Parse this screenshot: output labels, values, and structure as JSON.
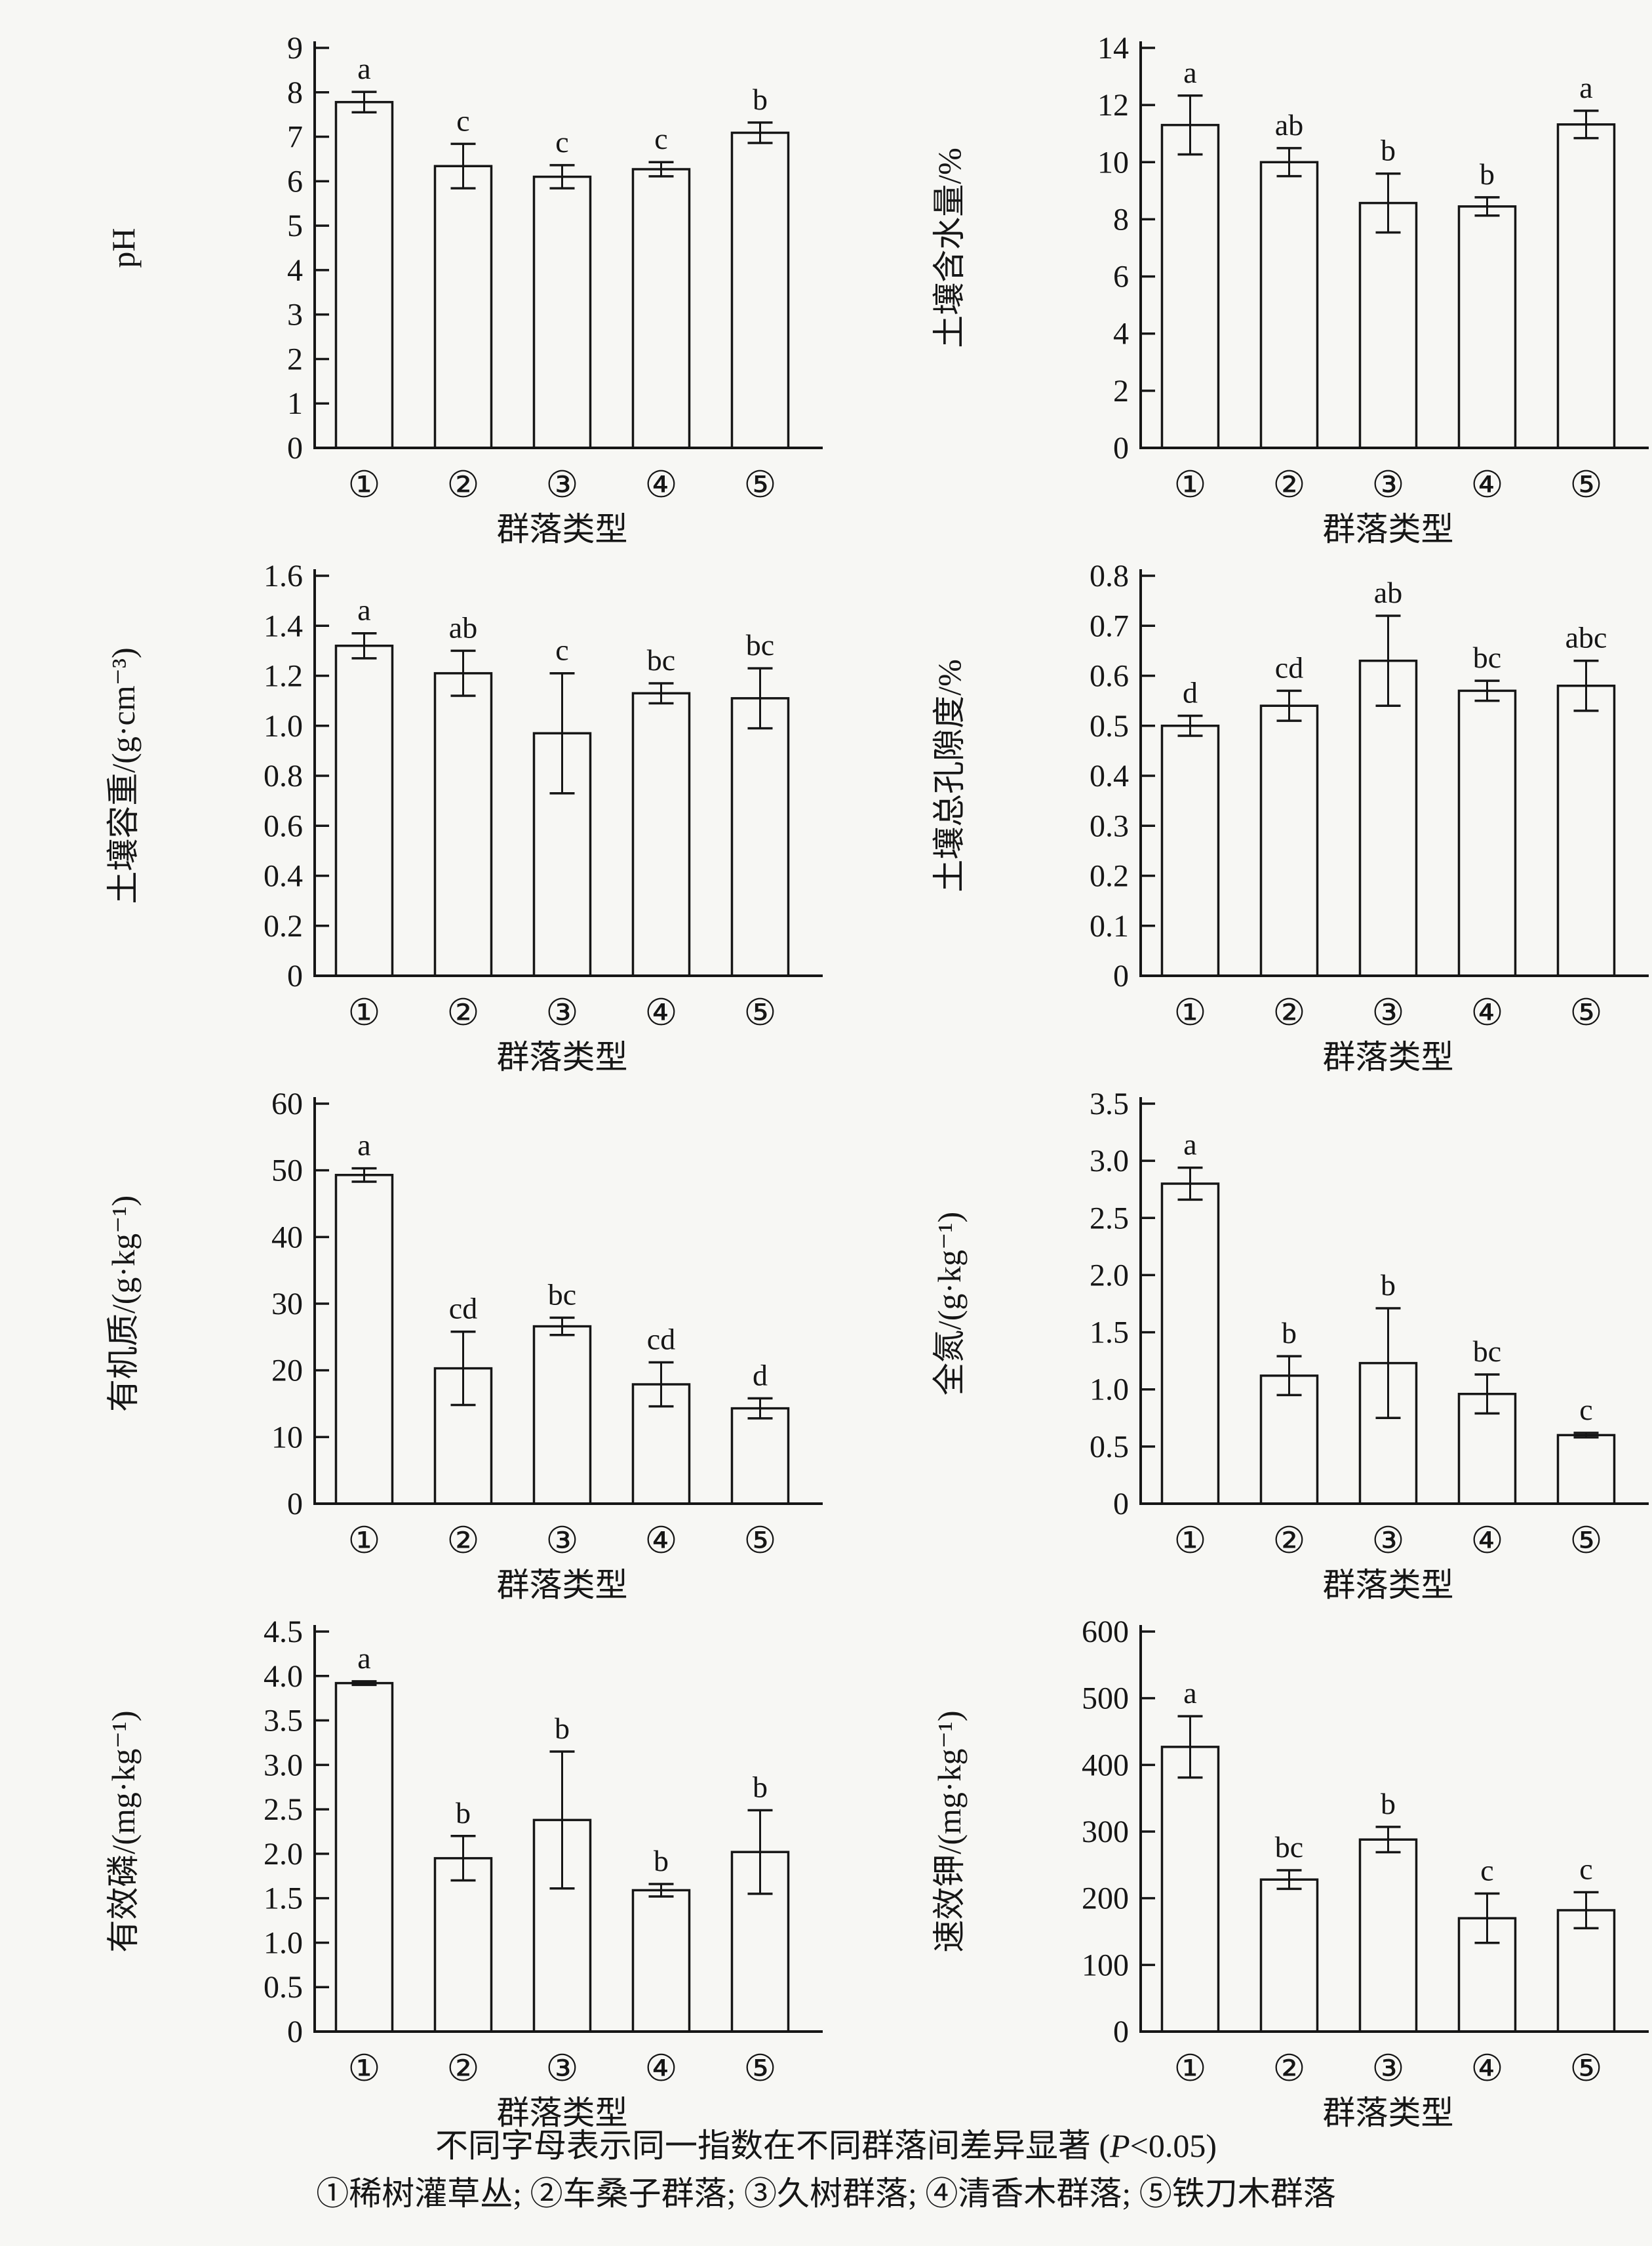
{
  "page": {
    "footnote": {
      "line1_pre": "不同字母表示同一指数在不同群落间差异显著 (",
      "line1_italic": "P",
      "line1_post": "<0.05)",
      "line2": "①稀树灌草丛; ②车桑子群落; ③久树群落; ④清香木群落; ⑤铁刀木群落"
    }
  },
  "chart_data": [
    {
      "type": "bar",
      "title": "",
      "ylabel": "pH",
      "xlabel": "群落类型",
      "categories": [
        "①",
        "②",
        "③",
        "④",
        "⑤"
      ],
      "values": [
        7.78,
        6.34,
        6.1,
        6.27,
        7.09
      ],
      "errors": [
        0.23,
        0.5,
        0.26,
        0.16,
        0.23
      ],
      "sig_letters": [
        "a",
        "c",
        "c",
        "c",
        "b"
      ],
      "ylim": [
        0,
        9
      ],
      "ytick_step": 1,
      "ytick_decimals": 0,
      "grid": false,
      "legend": "none"
    },
    {
      "type": "bar",
      "title": "",
      "ylabel": "土壤含水量/%",
      "xlabel": "群落类型",
      "categories": [
        "①",
        "②",
        "③",
        "④",
        "⑤"
      ],
      "values": [
        11.3,
        10.0,
        8.57,
        8.45,
        11.32
      ],
      "errors": [
        1.03,
        0.49,
        1.03,
        0.32,
        0.48
      ],
      "sig_letters": [
        "a",
        "ab",
        "b",
        "b",
        "a"
      ],
      "ylim": [
        0,
        14
      ],
      "ytick_step": 2,
      "ytick_decimals": 0,
      "grid": false,
      "legend": "none"
    },
    {
      "type": "bar",
      "title": "",
      "ylabel": "土壤容重/(g·cm⁻³)",
      "xlabel": "群落类型",
      "categories": [
        "①",
        "②",
        "③",
        "④",
        "⑤"
      ],
      "values": [
        1.32,
        1.21,
        0.97,
        1.13,
        1.11
      ],
      "errors": [
        0.05,
        0.09,
        0.24,
        0.04,
        0.12
      ],
      "sig_letters": [
        "a",
        "ab",
        "c",
        "bc",
        "bc"
      ],
      "ylim": [
        0,
        1.6
      ],
      "ytick_step": 0.2,
      "ytick_decimals": 1,
      "grid": false,
      "legend": "none"
    },
    {
      "type": "bar",
      "title": "",
      "ylabel": "土壤总孔隙度/%",
      "xlabel": "群落类型",
      "categories": [
        "①",
        "②",
        "③",
        "④",
        "⑤"
      ],
      "values": [
        0.5,
        0.54,
        0.63,
        0.57,
        0.58
      ],
      "errors": [
        0.02,
        0.03,
        0.09,
        0.02,
        0.05
      ],
      "sig_letters": [
        "d",
        "cd",
        "ab",
        "bc",
        "abc"
      ],
      "ylim": [
        0,
        0.8
      ],
      "ytick_step": 0.1,
      "ytick_decimals": 1,
      "grid": false,
      "legend": "none"
    },
    {
      "type": "bar",
      "title": "",
      "ylabel": "有机质/(g·kg⁻¹)",
      "xlabel": "群落类型",
      "categories": [
        "①",
        "②",
        "③",
        "④",
        "⑤"
      ],
      "values": [
        49.3,
        20.3,
        26.6,
        17.9,
        14.3
      ],
      "errors": [
        1.0,
        5.5,
        1.3,
        3.3,
        1.5
      ],
      "sig_letters": [
        "a",
        "cd",
        "bc",
        "cd",
        "d"
      ],
      "ylim": [
        0,
        60
      ],
      "ytick_step": 10,
      "ytick_decimals": 0,
      "grid": false,
      "legend": "none"
    },
    {
      "type": "bar",
      "title": "",
      "ylabel": "全氮/(g·kg⁻¹)",
      "xlabel": "群落类型",
      "categories": [
        "①",
        "②",
        "③",
        "④",
        "⑤"
      ],
      "values": [
        2.8,
        1.12,
        1.23,
        0.96,
        0.6
      ],
      "errors": [
        0.14,
        0.17,
        0.48,
        0.17,
        0.02
      ],
      "sig_letters": [
        "a",
        "b",
        "b",
        "bc",
        "c"
      ],
      "ylim": [
        0,
        3.5
      ],
      "ytick_step": 0.5,
      "ytick_decimals": 1,
      "grid": false,
      "legend": "none"
    },
    {
      "type": "bar",
      "title": "",
      "ylabel": "有效磷/(mg·kg⁻¹)",
      "xlabel": "群落类型",
      "categories": [
        "①",
        "②",
        "③",
        "④",
        "⑤"
      ],
      "values": [
        3.92,
        1.95,
        2.38,
        1.59,
        2.02
      ],
      "errors": [
        0.02,
        0.25,
        0.77,
        0.07,
        0.47
      ],
      "sig_letters": [
        "a",
        "b",
        "b",
        "b",
        "b"
      ],
      "ylim": [
        0,
        4.5
      ],
      "ytick_step": 0.5,
      "ytick_decimals": 1,
      "grid": false,
      "legend": "none"
    },
    {
      "type": "bar",
      "title": "",
      "ylabel": "速效钾/(mg·kg⁻¹)",
      "xlabel": "群落类型",
      "categories": [
        "①",
        "②",
        "③",
        "④",
        "⑤"
      ],
      "values": [
        427,
        228,
        288,
        170,
        182
      ],
      "errors": [
        46,
        14,
        19,
        37,
        27
      ],
      "sig_letters": [
        "a",
        "bc",
        "b",
        "c",
        "c"
      ],
      "ylim": [
        0,
        600
      ],
      "ytick_step": 100,
      "ytick_decimals": 0,
      "grid": false,
      "legend": "none"
    }
  ]
}
